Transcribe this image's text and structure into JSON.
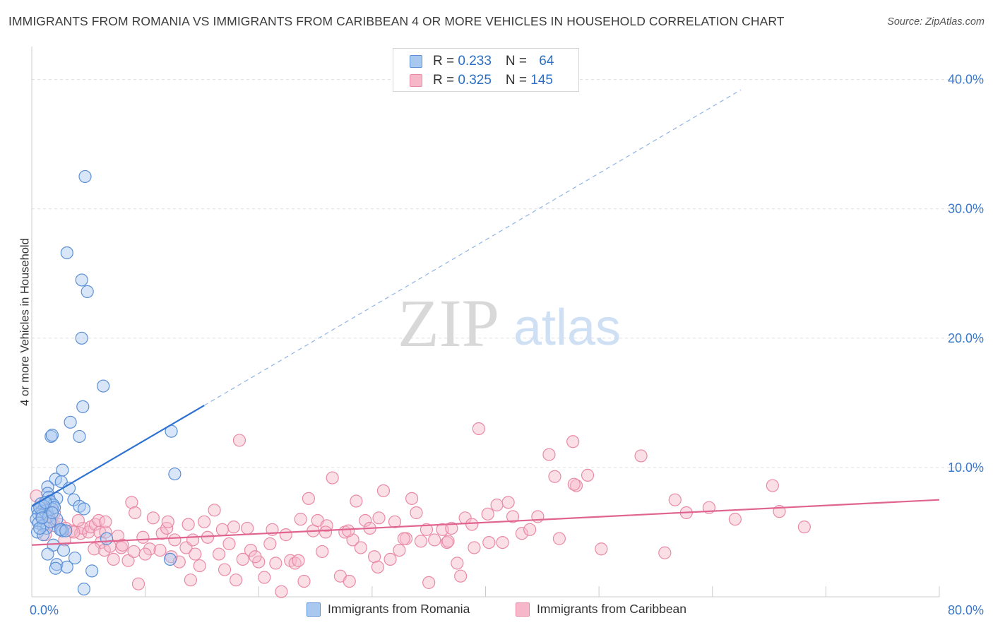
{
  "title": "IMMIGRANTS FROM ROMANIA VS IMMIGRANTS FROM CARIBBEAN 4 OR MORE VEHICLES IN HOUSEHOLD CORRELATION CHART",
  "source": "Source: ZipAtlas.com",
  "watermark": {
    "zip": "ZIP",
    "atlas": "atlas"
  },
  "legend": {
    "rows": [
      {
        "r_label": "R = ",
        "r_value": "0.233",
        "n_label": "N = ",
        "n_value": "64"
      },
      {
        "r_label": "R = ",
        "r_value": "0.325",
        "n_label": "N = ",
        "n_value": "145"
      }
    ]
  },
  "bottom_legend": [
    "Immigrants from Romania",
    "Immigrants from Caribbean"
  ],
  "colors": {
    "romania_fill": "#a9c8f0",
    "romania_stroke": "#5b8fd6",
    "romania_line": "#2d72d2",
    "caribbean_fill": "#f6b8c9",
    "caribbean_stroke": "#e98aa5",
    "caribbean_line": "#e0648f",
    "axis_text": "#3a78c9",
    "grid": "#dddddd"
  },
  "chart_data": {
    "type": "scatter",
    "title": "IMMIGRANTS FROM ROMANIA VS IMMIGRANTS FROM CARIBBEAN 4 OR MORE VEHICLES IN HOUSEHOLD CORRELATION CHART",
    "xlabel": "",
    "ylabel": "4 or more Vehicles in Household",
    "xlim": [
      0,
      80
    ],
    "ylim": [
      0,
      42
    ],
    "x_tick_labels": [
      {
        "value": 0,
        "label": "0.0%"
      },
      {
        "value": 80,
        "label": "80.0%"
      }
    ],
    "y_tick_labels": [
      {
        "value": 10,
        "label": "10.0%"
      },
      {
        "value": 20,
        "label": "20.0%"
      },
      {
        "value": 30,
        "label": "30.0%"
      },
      {
        "value": 40,
        "label": "40.0%"
      }
    ],
    "series": [
      {
        "name": "Immigrants from Romania",
        "R": 0.233,
        "N": 64,
        "trend": {
          "x0": 0,
          "y0": 7.0,
          "x1": 15.2,
          "y1": 14.8,
          "dashed_to_x": 62.5,
          "dashed_to_y": 39.2
        },
        "points": [
          [
            4.7,
            32.5
          ],
          [
            3.1,
            26.6
          ],
          [
            4.4,
            24.5
          ],
          [
            4.9,
            23.6
          ],
          [
            4.4,
            20.0
          ],
          [
            6.3,
            16.3
          ],
          [
            4.5,
            14.7
          ],
          [
            3.4,
            13.5
          ],
          [
            1.7,
            12.4
          ],
          [
            1.8,
            12.5
          ],
          [
            4.2,
            12.4
          ],
          [
            12.3,
            12.8
          ],
          [
            12.6,
            9.5
          ],
          [
            2.7,
            9.8
          ],
          [
            2.1,
            9.1
          ],
          [
            2.6,
            8.9
          ],
          [
            1.4,
            8.5
          ],
          [
            3.3,
            8.4
          ],
          [
            1.4,
            8.0
          ],
          [
            1.5,
            7.7
          ],
          [
            2.2,
            7.6
          ],
          [
            3.7,
            7.5
          ],
          [
            1.6,
            7.4
          ],
          [
            0.8,
            7.2
          ],
          [
            1.9,
            7.1
          ],
          [
            1.1,
            7.0
          ],
          [
            4.2,
            7.0
          ],
          [
            4.6,
            6.8
          ],
          [
            1.8,
            6.8
          ],
          [
            0.5,
            6.8
          ],
          [
            1.3,
            6.7
          ],
          [
            0.9,
            6.6
          ],
          [
            0.6,
            6.4
          ],
          [
            0.9,
            6.3
          ],
          [
            1.5,
            6.2
          ],
          [
            2.2,
            6.0
          ],
          [
            0.4,
            6.0
          ],
          [
            0.6,
            5.7
          ],
          [
            1.0,
            5.5
          ],
          [
            1.3,
            5.3
          ],
          [
            2.6,
            5.2
          ],
          [
            2.7,
            5.1
          ],
          [
            2.5,
            5.2
          ],
          [
            0.5,
            5.0
          ],
          [
            1.0,
            4.8
          ],
          [
            6.6,
            4.5
          ],
          [
            1.9,
            4.0
          ],
          [
            2.8,
            3.6
          ],
          [
            1.4,
            3.3
          ],
          [
            3.8,
            3.0
          ],
          [
            12.2,
            2.9
          ],
          [
            2.2,
            2.5
          ],
          [
            3.1,
            2.3
          ],
          [
            2.1,
            2.2
          ],
          [
            5.3,
            2.0
          ],
          [
            4.6,
            0.6
          ],
          [
            0.7,
            6.9
          ],
          [
            1.2,
            7.3
          ],
          [
            2.0,
            6.9
          ],
          [
            0.7,
            5.3
          ],
          [
            1.6,
            5.8
          ],
          [
            3.0,
            5.1
          ],
          [
            0.9,
            6.1
          ],
          [
            1.8,
            6.5
          ]
        ]
      },
      {
        "name": "Immigrants from Caribbean",
        "R": 0.325,
        "N": 145,
        "trend": {
          "x0": 0,
          "y0": 4.0,
          "x1": 80,
          "y1": 7.5
        },
        "points": [
          [
            0.4,
            7.8
          ],
          [
            0.9,
            7.0
          ],
          [
            1.5,
            6.3
          ],
          [
            1.7,
            5.8
          ],
          [
            2.0,
            5.5
          ],
          [
            2.5,
            5.6
          ],
          [
            3.0,
            5.3
          ],
          [
            3.5,
            5.1
          ],
          [
            4.3,
            4.9
          ],
          [
            4.5,
            5.3
          ],
          [
            5.0,
            5.0
          ],
          [
            5.2,
            5.4
          ],
          [
            5.6,
            5.6
          ],
          [
            5.9,
            5.9
          ],
          [
            6.0,
            5.0
          ],
          [
            6.1,
            4.2
          ],
          [
            6.4,
            3.6
          ],
          [
            6.5,
            5.0
          ],
          [
            6.5,
            5.8
          ],
          [
            7.2,
            2.9
          ],
          [
            7.6,
            4.7
          ],
          [
            7.9,
            3.8
          ],
          [
            8.5,
            2.8
          ],
          [
            8.8,
            7.3
          ],
          [
            9.0,
            3.5
          ],
          [
            9.4,
            1.0
          ],
          [
            9.8,
            4.6
          ],
          [
            10.4,
            3.7
          ],
          [
            10.7,
            6.1
          ],
          [
            11.3,
            3.6
          ],
          [
            11.5,
            4.9
          ],
          [
            11.9,
            5.3
          ],
          [
            12.3,
            3.1
          ],
          [
            12.6,
            4.4
          ],
          [
            13.0,
            2.7
          ],
          [
            13.6,
            3.8
          ],
          [
            13.8,
            5.6
          ],
          [
            14.0,
            1.3
          ],
          [
            14.4,
            3.3
          ],
          [
            14.8,
            2.4
          ],
          [
            15.2,
            5.8
          ],
          [
            15.5,
            4.6
          ],
          [
            16.1,
            6.7
          ],
          [
            16.5,
            3.3
          ],
          [
            17.0,
            2.1
          ],
          [
            17.4,
            4.1
          ],
          [
            17.8,
            5.4
          ],
          [
            18.0,
            1.3
          ],
          [
            18.6,
            2.9
          ],
          [
            19.0,
            5.3
          ],
          [
            19.3,
            3.6
          ],
          [
            18.3,
            12.1
          ],
          [
            20.0,
            2.7
          ],
          [
            20.5,
            1.5
          ],
          [
            21.0,
            4.1
          ],
          [
            21.5,
            2.6
          ],
          [
            22.0,
            0.4
          ],
          [
            22.4,
            4.8
          ],
          [
            22.8,
            2.8
          ],
          [
            23.2,
            2.6
          ],
          [
            23.7,
            6.0
          ],
          [
            24.0,
            1.2
          ],
          [
            24.4,
            7.6
          ],
          [
            24.8,
            5.1
          ],
          [
            25.2,
            5.9
          ],
          [
            25.6,
            3.5
          ],
          [
            26.0,
            5.5
          ],
          [
            26.5,
            9.2
          ],
          [
            27.2,
            1.6
          ],
          [
            27.6,
            5.0
          ],
          [
            28.0,
            1.2
          ],
          [
            28.3,
            4.4
          ],
          [
            28.6,
            7.4
          ],
          [
            29.0,
            3.8
          ],
          [
            29.4,
            5.9
          ],
          [
            29.8,
            5.3
          ],
          [
            30.2,
            3.1
          ],
          [
            30.6,
            6.1
          ],
          [
            31.0,
            8.2
          ],
          [
            31.6,
            2.9
          ],
          [
            32.0,
            5.8
          ],
          [
            32.4,
            3.6
          ],
          [
            33.0,
            4.5
          ],
          [
            33.5,
            7.6
          ],
          [
            33.9,
            6.5
          ],
          [
            34.3,
            4.3
          ],
          [
            35.0,
            1.1
          ],
          [
            35.5,
            4.4
          ],
          [
            36.2,
            5.2
          ],
          [
            36.6,
            4.2
          ],
          [
            37.0,
            5.3
          ],
          [
            37.5,
            2.6
          ],
          [
            37.8,
            1.6
          ],
          [
            38.2,
            6.1
          ],
          [
            38.8,
            5.6
          ],
          [
            39.4,
            13.0
          ],
          [
            40.2,
            6.4
          ],
          [
            41.0,
            7.1
          ],
          [
            40.3,
            4.2
          ],
          [
            41.5,
            4.2
          ],
          [
            42.4,
            6.2
          ],
          [
            43.2,
            4.9
          ],
          [
            43.9,
            5.2
          ],
          [
            44.6,
            6.2
          ],
          [
            45.6,
            11.0
          ],
          [
            46.1,
            9.3
          ],
          [
            46.5,
            4.5
          ],
          [
            47.7,
            12.0
          ],
          [
            48.0,
            8.6
          ],
          [
            49.0,
            9.4
          ],
          [
            50.2,
            3.7
          ],
          [
            53.7,
            10.9
          ],
          [
            55.8,
            3.4
          ],
          [
            56.7,
            7.5
          ],
          [
            57.7,
            6.5
          ],
          [
            59.7,
            6.9
          ],
          [
            62.0,
            6.0
          ],
          [
            65.3,
            8.6
          ],
          [
            65.9,
            6.6
          ],
          [
            68.1,
            5.4
          ],
          [
            2.0,
            6.5
          ],
          [
            3.7,
            5.0
          ],
          [
            5.5,
            3.7
          ],
          [
            8.0,
            4.0
          ],
          [
            10.0,
            3.3
          ],
          [
            12.0,
            5.8
          ],
          [
            14.2,
            4.4
          ],
          [
            16.8,
            5.2
          ],
          [
            19.7,
            3.1
          ],
          [
            21.2,
            5.2
          ],
          [
            23.5,
            2.8
          ],
          [
            25.9,
            5.0
          ],
          [
            27.9,
            5.1
          ],
          [
            30.5,
            2.3
          ],
          [
            32.8,
            4.5
          ],
          [
            34.8,
            5.2
          ],
          [
            36.7,
            4.3
          ],
          [
            39.0,
            3.8
          ],
          [
            42.0,
            7.3
          ],
          [
            47.8,
            8.7
          ],
          [
            1.2,
            4.8
          ],
          [
            2.9,
            4.4
          ],
          [
            4.1,
            5.9
          ],
          [
            6.9,
            3.9
          ],
          [
            9.1,
            6.5
          ]
        ]
      }
    ]
  }
}
